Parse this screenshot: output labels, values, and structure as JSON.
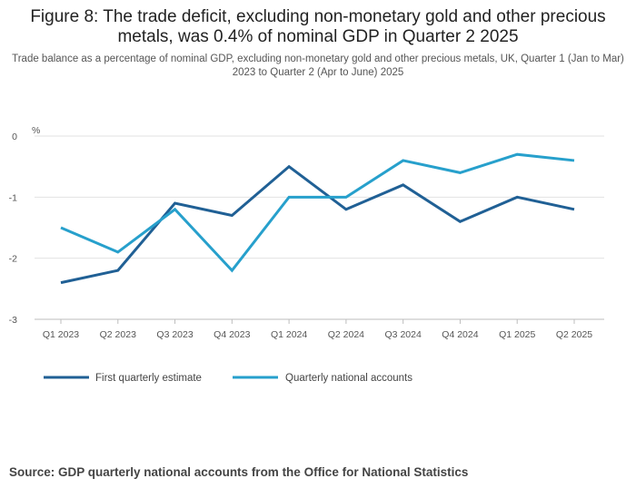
{
  "figure": {
    "title": "Figure 8: The trade deficit, excluding non-monetary gold and other precious metals, was 0.4% of nominal GDP in Quarter 2 2025",
    "subtitle": "Trade balance as a percentage of nominal GDP, excluding non-monetary gold and other precious metals, UK, Quarter 1 (Jan to Mar) 2023 to Quarter 2 (Apr to June) 2025",
    "source": "Source: GDP quarterly national accounts from the Office for National Statistics"
  },
  "chart_data": {
    "type": "line",
    "title": "Figure 8: The trade deficit, excluding non-monetary gold and other precious metals, was 0.4% of nominal GDP in Quarter 2 2025",
    "ylabel": "%",
    "xlabel": "",
    "categories": [
      "Q1 2023",
      "Q2 2023",
      "Q3 2023",
      "Q4 2023",
      "Q1 2024",
      "Q2 2024",
      "Q3 2024",
      "Q4 2024",
      "Q1 2025",
      "Q2 2025"
    ],
    "yticks": [
      0,
      -1,
      -2,
      -3
    ],
    "ylim": [
      -3,
      0
    ],
    "grid": true,
    "legend": "bottom-left",
    "series": [
      {
        "name": "First quarterly estimate",
        "color": "#206095",
        "values": [
          -2.4,
          -2.2,
          -1.1,
          -1.3,
          -0.5,
          -1.2,
          -0.8,
          -1.4,
          -1.0,
          -1.2
        ]
      },
      {
        "name": "Quarterly national accounts",
        "color": "#27a0cc",
        "values": [
          -1.5,
          -1.9,
          -1.2,
          -2.2,
          -1.0,
          -1.0,
          -0.4,
          -0.6,
          -0.3,
          -0.4
        ]
      }
    ]
  }
}
